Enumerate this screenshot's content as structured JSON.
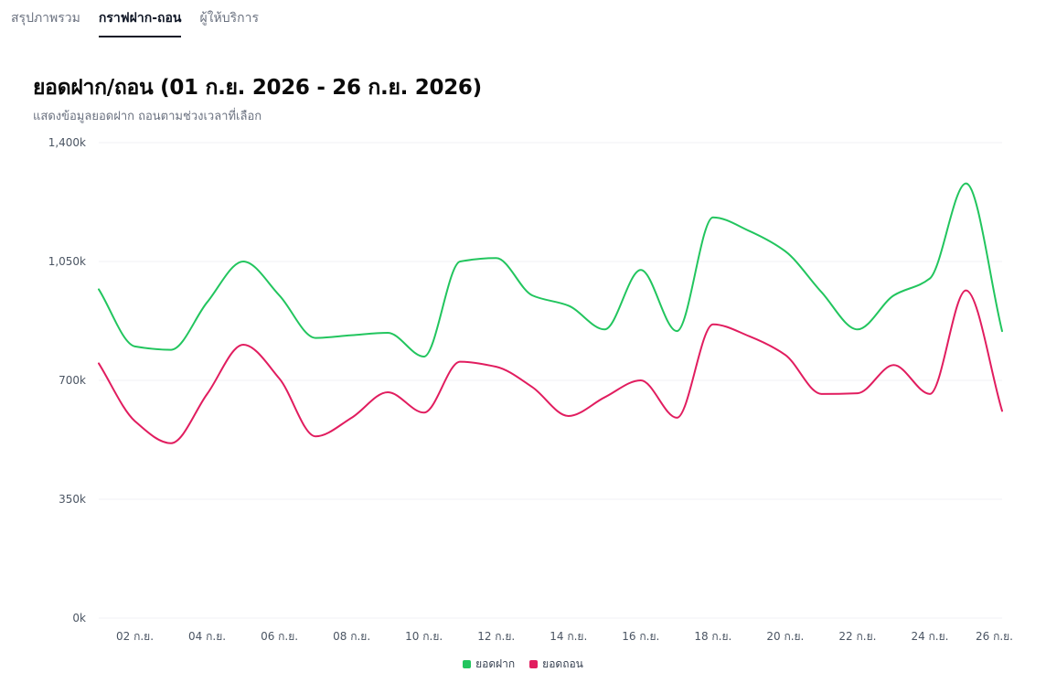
{
  "tabs": [
    {
      "label": "สรุปภาพรวม",
      "active": false
    },
    {
      "label": "กราฟฝาก-ถอน",
      "active": true
    },
    {
      "label": "ผู้ให้บริการ",
      "active": false
    }
  ],
  "chart_data": {
    "type": "line",
    "title": "ยอดฝาก/ถอน (01 ก.ย. 2026 - 26 ก.ย. 2026)",
    "subtitle": "แสดงข้อมูลยอดฝาก ถอนตามช่วงเวลาที่เลือก",
    "x": [
      "01 ก.ย.",
      "02 ก.ย.",
      "03 ก.ย.",
      "04 ก.ย.",
      "05 ก.ย.",
      "06 ก.ย.",
      "07 ก.ย.",
      "08 ก.ย.",
      "09 ก.ย.",
      "10 ก.ย.",
      "11 ก.ย.",
      "12 ก.ย.",
      "13 ก.ย.",
      "14 ก.ย.",
      "15 ก.ย.",
      "16 ก.ย.",
      "17 ก.ย.",
      "18 ก.ย.",
      "19 ก.ย.",
      "20 ก.ย.",
      "21 ก.ย.",
      "22 ก.ย.",
      "23 ก.ย.",
      "24 ก.ย.",
      "25 ก.ย.",
      "26 ก.ย."
    ],
    "x_tick_labels": [
      "02 ก.ย.",
      "04 ก.ย.",
      "06 ก.ย.",
      "08 ก.ย.",
      "10 ก.ย.",
      "12 ก.ย.",
      "14 ก.ย.",
      "16 ก.ย.",
      "18 ก.ย.",
      "20 ก.ย.",
      "22 ก.ย.",
      "24 ก.ย.",
      "26 ก.ย."
    ],
    "y_tick_labels": [
      "0k",
      "350k",
      "700k",
      "1,050k",
      "1,400k"
    ],
    "ylim": [
      0,
      1400000
    ],
    "y_ticks": [
      0,
      350000,
      700000,
      1050000,
      1400000
    ],
    "grid": true,
    "legend_position": "bottom-center",
    "series": [
      {
        "name": "ยอดฝาก",
        "color": "#22c55e",
        "values": [
          968000,
          800000,
          790000,
          930000,
          1050000,
          950000,
          825000,
          833000,
          840000,
          770000,
          1050000,
          1060000,
          950000,
          920000,
          850000,
          1025000,
          845000,
          1180000,
          1140000,
          1080000,
          960000,
          850000,
          950000,
          1000000,
          1280000,
          845000
        ]
      },
      {
        "name": "ยอดถอน",
        "color": "#e11d5f",
        "values": [
          750000,
          580000,
          515000,
          660000,
          805000,
          705000,
          535000,
          590000,
          665000,
          605000,
          755000,
          740000,
          680000,
          595000,
          650000,
          700000,
          590000,
          865000,
          830000,
          775000,
          660000,
          662000,
          745000,
          660000,
          965000,
          610000
        ]
      }
    ]
  }
}
